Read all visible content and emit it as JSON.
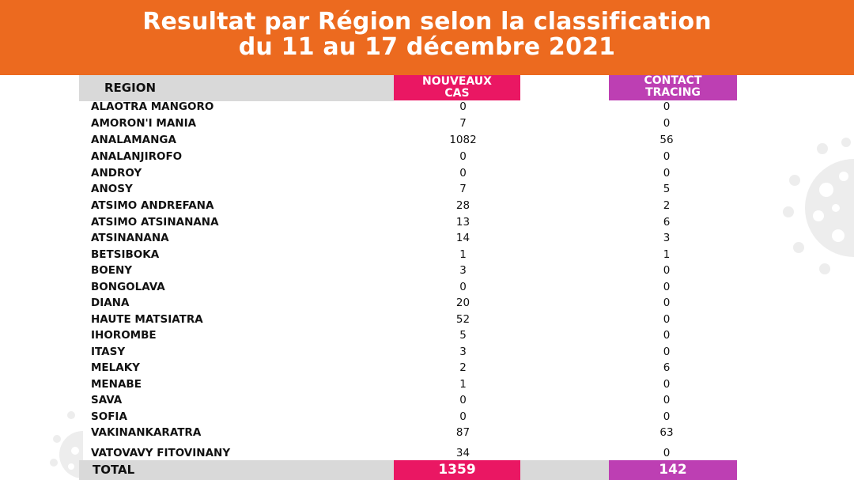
{
  "title": {
    "line1": "Resultat par Région selon la classification",
    "line2": "du 11 au 17 décembre 2021"
  },
  "header": {
    "region": "REGION",
    "cas_line1": "NOUVEAUX",
    "cas_line2": "CAS",
    "ct_line1": "CONTACT",
    "ct_line2": "TRACING"
  },
  "rows": [
    {
      "region": "ALAOTRA MANGORO",
      "cas": "0",
      "ct": "0"
    },
    {
      "region": "AMORON'I MANIA",
      "cas": "7",
      "ct": "0"
    },
    {
      "region": "ANALAMANGA",
      "cas": "1082",
      "ct": "56"
    },
    {
      "region": "ANALANJIROFO",
      "cas": "0",
      "ct": "0"
    },
    {
      "region": "ANDROY",
      "cas": "0",
      "ct": "0"
    },
    {
      "region": "ANOSY",
      "cas": "7",
      "ct": "5"
    },
    {
      "region": "ATSIMO ANDREFANA",
      "cas": "28",
      "ct": "2"
    },
    {
      "region": "ATSIMO ATSINANANA",
      "cas": "13",
      "ct": "6"
    },
    {
      "region": "ATSINANANA",
      "cas": "14",
      "ct": "3"
    },
    {
      "region": "BETSIBOKA",
      "cas": "1",
      "ct": "1"
    },
    {
      "region": "BOENY",
      "cas": "3",
      "ct": "0"
    },
    {
      "region": "BONGOLAVA",
      "cas": "0",
      "ct": "0"
    },
    {
      "region": "DIANA",
      "cas": "20",
      "ct": "0"
    },
    {
      "region": "HAUTE MATSIATRA",
      "cas": "52",
      "ct": "0"
    },
    {
      "region": "IHOROMBE",
      "cas": "5",
      "ct": "0"
    },
    {
      "region": "ITASY",
      "cas": "3",
      "ct": "0"
    },
    {
      "region": "MELAKY",
      "cas": "2",
      "ct": "6"
    },
    {
      "region": "MENABE",
      "cas": "1",
      "ct": "0"
    },
    {
      "region": "SAVA",
      "cas": "0",
      "ct": "0"
    },
    {
      "region": "SOFIA",
      "cas": "0",
      "ct": "0"
    },
    {
      "region": "VAKINANKARATRA",
      "cas": "87",
      "ct": "63"
    },
    {
      "region": "VATOVAVY FITOVINANY",
      "cas": "34",
      "ct": "0"
    }
  ],
  "total": {
    "label": "TOTAL",
    "cas": "1359",
    "ct": "142"
  },
  "colors": {
    "banner": "#ec6a1f",
    "cas": "#ea1763",
    "ct": "#bd3fb3",
    "grey": "#d9d9d9"
  },
  "decor": {
    "icon": "virus-icon"
  }
}
